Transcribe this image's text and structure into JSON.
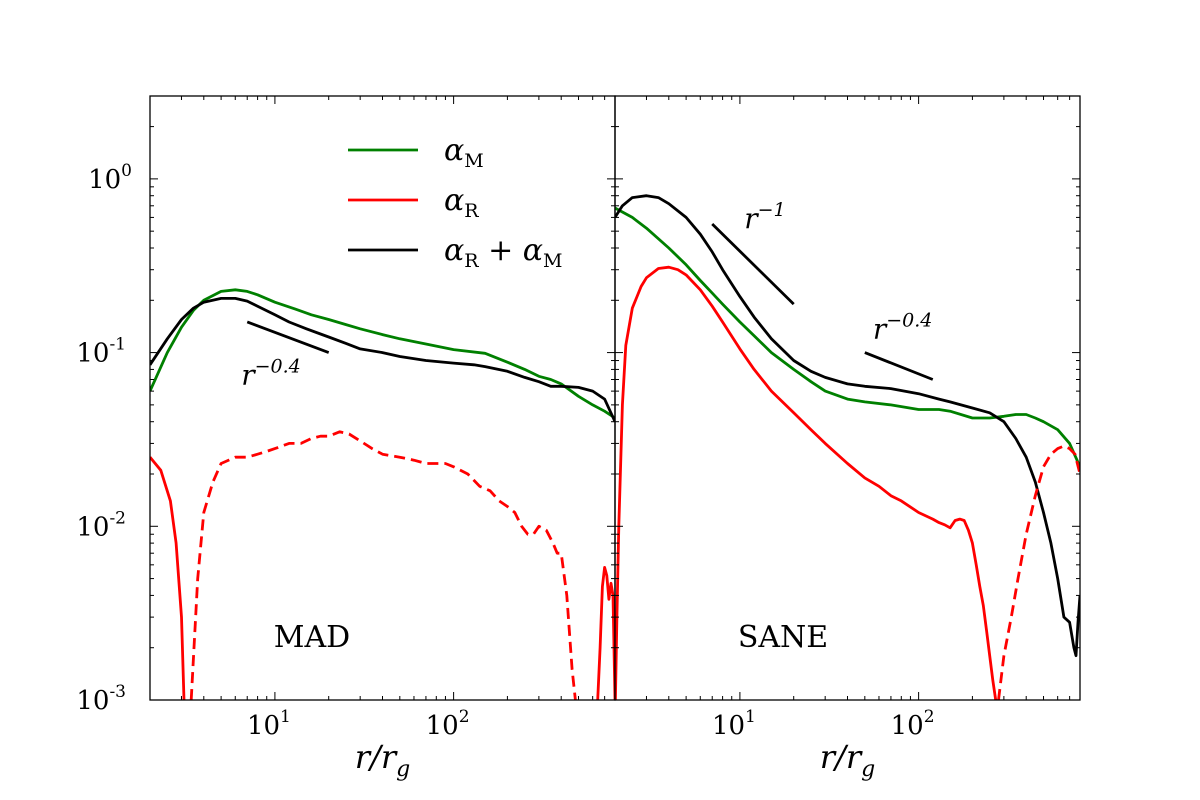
{
  "chart_data": {
    "type": "line",
    "y_scale": "log",
    "x_scale": "log",
    "ylim": [
      0.001,
      3
    ],
    "y_ticks": [
      {
        "base": "10",
        "exp": "0"
      },
      {
        "base": "10",
        "exp": "-1"
      },
      {
        "base": "10",
        "exp": "-2"
      },
      {
        "base": "10",
        "exp": "-3"
      }
    ],
    "legend": {
      "placement": "top-center of left panel",
      "entries": [
        {
          "base": "α",
          "sub": "M",
          "text": "",
          "color": "#008000"
        },
        {
          "base": "α",
          "sub": "R",
          "text": "",
          "color": "#ff0000"
        },
        {
          "base": "α",
          "sub": "R",
          "text": " + α",
          "sub2": "M",
          "color": "#000000"
        }
      ]
    },
    "panels": [
      {
        "label": "MAD",
        "xlabel": "r/r",
        "xlabel_sub": "g",
        "xlim": [
          2,
          800
        ],
        "x_ticks": [
          {
            "base": "10",
            "exp": "1"
          },
          {
            "base": "10",
            "exp": "2"
          }
        ],
        "series": [
          {
            "color": "#008000",
            "style": "solid",
            "x": [
              2,
              2.5,
              3,
              3.5,
              4,
              5,
              6,
              7,
              8,
              10,
              13,
              16,
              20,
              25,
              30,
              40,
              50,
              70,
              100,
              150,
              200,
              250,
              300,
              350,
              400,
              500,
              600,
              700,
              800
            ],
            "y": [
              0.06,
              0.1,
              0.14,
              0.175,
              0.2,
              0.225,
              0.23,
              0.225,
              0.215,
              0.195,
              0.178,
              0.165,
              0.155,
              0.145,
              0.137,
              0.127,
              0.12,
              0.112,
              0.104,
              0.099,
              0.088,
              0.08,
              0.073,
              0.07,
              0.066,
              0.056,
              0.05,
              0.046,
              0.042
            ]
          },
          {
            "color": "#000000",
            "style": "solid",
            "x": [
              2,
              2.5,
              3,
              3.5,
              4,
              5,
              6,
              7,
              8,
              10,
              12,
              15,
              18,
              20,
              25,
              30,
              40,
              50,
              70,
              100,
              130,
              150,
              200,
              250,
              300,
              350,
              400,
              500,
              600,
              700,
              800
            ],
            "y": [
              0.085,
              0.12,
              0.155,
              0.18,
              0.195,
              0.205,
              0.205,
              0.198,
              0.185,
              0.165,
              0.15,
              0.137,
              0.128,
              0.123,
              0.113,
              0.105,
              0.1,
              0.095,
              0.09,
              0.087,
              0.085,
              0.083,
              0.078,
              0.072,
              0.068,
              0.064,
              0.064,
              0.063,
              0.06,
              0.054,
              0.04
            ]
          },
          {
            "color": "#ff0000",
            "style": "solid",
            "x": [
              2,
              2.3,
              2.6,
              2.8,
              3.0,
              3.1
            ],
            "y": [
              0.025,
              0.021,
              0.014,
              0.008,
              0.003,
              0.001
            ]
          },
          {
            "color": "#ff0000",
            "style": "dashed",
            "x": [
              3.4,
              3.7,
              4,
              4.5,
              5,
              6,
              7,
              8,
              9,
              10,
              12,
              14,
              16,
              18,
              20,
              23,
              26,
              30,
              35,
              40,
              50,
              60,
              70,
              80,
              90,
              100,
              120,
              140,
              160,
              180,
              200,
              220,
              240,
              260,
              280,
              300,
              330,
              360,
              380,
              400,
              430,
              460,
              480
            ],
            "y": [
              0.001,
              0.005,
              0.012,
              0.018,
              0.023,
              0.025,
              0.025,
              0.026,
              0.027,
              0.028,
              0.03,
              0.03,
              0.032,
              0.033,
              0.033,
              0.035,
              0.034,
              0.031,
              0.028,
              0.026,
              0.025,
              0.024,
              0.023,
              0.023,
              0.023,
              0.022,
              0.02,
              0.017,
              0.016,
              0.014,
              0.013,
              0.012,
              0.01,
              0.009,
              0.009,
              0.01,
              0.0095,
              0.008,
              0.007,
              0.007,
              0.004,
              0.0015,
              0.001
            ]
          },
          {
            "color": "#ff0000",
            "style": "solid",
            "x": [
              640,
              660,
              680,
              700,
              720,
              740,
              760,
              780,
              800
            ],
            "y": [
              0.001,
              0.002,
              0.0045,
              0.0058,
              0.0052,
              0.0038,
              0.0047,
              0.004,
              0.001
            ]
          }
        ]
      },
      {
        "label": "SANE",
        "xlabel": "r/r",
        "xlabel_sub": "g",
        "xlim": [
          2,
          800
        ],
        "x_ticks": [
          {
            "base": "10",
            "exp": "1"
          },
          {
            "base": "10",
            "exp": "2"
          }
        ],
        "series": [
          {
            "color": "#008000",
            "style": "solid",
            "x": [
              2,
              2.5,
              3,
              4,
              5,
              6,
              7,
              8,
              10,
              12,
              15,
              20,
              25,
              30,
              40,
              50,
              70,
              100,
              130,
              150,
              200,
              250,
              300,
              350,
              400,
              450,
              500,
              600,
              700,
              800
            ],
            "y": [
              0.68,
              0.6,
              0.52,
              0.4,
              0.32,
              0.26,
              0.22,
              0.19,
              0.15,
              0.125,
              0.1,
              0.08,
              0.068,
              0.06,
              0.054,
              0.052,
              0.05,
              0.047,
              0.047,
              0.046,
              0.042,
              0.042,
              0.043,
              0.044,
              0.044,
              0.042,
              0.04,
              0.036,
              0.03,
              0.022
            ]
          },
          {
            "color": "#000000",
            "style": "solid",
            "x": [
              2,
              2.2,
              2.5,
              3,
              3.5,
              4,
              5,
              6,
              7,
              8,
              10,
              12,
              15,
              20,
              25,
              30,
              40,
              50,
              70,
              100,
              130,
              150,
              200,
              250,
              300,
              350,
              400,
              450,
              500,
              550,
              600,
              650,
              700,
              740,
              760,
              780,
              800
            ],
            "y": [
              0.6,
              0.7,
              0.78,
              0.8,
              0.78,
              0.72,
              0.6,
              0.48,
              0.38,
              0.3,
              0.21,
              0.16,
              0.12,
              0.09,
              0.078,
              0.072,
              0.066,
              0.064,
              0.062,
              0.058,
              0.054,
              0.052,
              0.048,
              0.045,
              0.04,
              0.032,
              0.025,
              0.018,
              0.012,
              0.008,
              0.005,
              0.003,
              0.0028,
              0.002,
              0.0018,
              0.0028,
              0.004
            ]
          },
          {
            "color": "#ff0000",
            "style": "solid",
            "x": [
              2.01,
              2.05,
              2.1,
              2.2,
              2.3,
              2.5,
              2.8,
              3,
              3.5,
              4,
              4.5,
              5,
              6,
              7,
              8,
              10,
              12,
              15,
              20,
              25,
              30,
              40,
              50,
              60,
              70,
              80,
              100,
              120,
              130,
              140,
              150,
              160,
              170,
              180,
              190,
              200,
              210,
              220,
              230,
              240,
              250,
              260,
              270
            ],
            "y": [
              0.001,
              0.003,
              0.01,
              0.05,
              0.11,
              0.18,
              0.24,
              0.27,
              0.305,
              0.31,
              0.3,
              0.28,
              0.23,
              0.185,
              0.15,
              0.105,
              0.08,
              0.06,
              0.045,
              0.036,
              0.03,
              0.023,
              0.019,
              0.017,
              0.015,
              0.014,
              0.012,
              0.011,
              0.0105,
              0.0102,
              0.0098,
              0.0108,
              0.011,
              0.0108,
              0.0095,
              0.008,
              0.006,
              0.0045,
              0.0035,
              0.0025,
              0.0018,
              0.0013,
              0.001
            ]
          },
          {
            "color": "#ff0000",
            "style": "dashed",
            "x": [
              280,
              300,
              330,
              360,
              400,
              450,
              500,
              550,
              600,
              650,
              700,
              750,
              800
            ],
            "y": [
              0.001,
              0.0018,
              0.003,
              0.005,
              0.009,
              0.015,
              0.022,
              0.026,
              0.028,
              0.029,
              0.028,
              0.026,
              0.02
            ]
          }
        ]
      }
    ],
    "annotations": [
      {
        "panel": 0,
        "base": "r",
        "exp": "−0.4",
        "line_x": [
          7,
          20
        ],
        "line_y": [
          0.15,
          0.1
        ]
      },
      {
        "panel": 1,
        "base": "r",
        "exp": "−1",
        "line_x": [
          7,
          20
        ],
        "line_y": [
          0.55,
          0.19
        ]
      },
      {
        "panel": 1,
        "base": "r",
        "exp": "−0.4",
        "line_x": [
          50,
          120
        ],
        "line_y": [
          0.1,
          0.07
        ]
      }
    ]
  }
}
